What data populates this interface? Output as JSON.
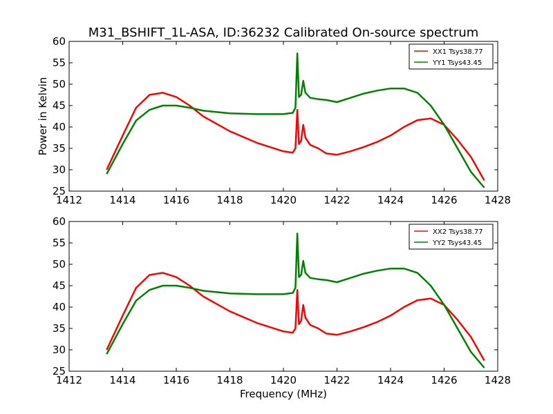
{
  "title": "M31_BSHIFT_1L-ASA, ID:36232 Calibrated On-source spectrum",
  "chart_data": [
    {
      "type": "line",
      "title": "M31_BSHIFT_1L-ASA, ID:36232 Calibrated On-source spectrum",
      "xlabel": "",
      "ylabel": "Power in Kelvin",
      "xlim": [
        1412,
        1428
      ],
      "ylim": [
        25,
        60
      ],
      "xticks": [
        1412,
        1414,
        1416,
        1418,
        1420,
        1422,
        1424,
        1426,
        1428
      ],
      "yticks": [
        25,
        30,
        35,
        40,
        45,
        50,
        55,
        60
      ],
      "grid": false,
      "legend_position": "top-right",
      "series": [
        {
          "name": "XX1 Tsys38.77",
          "color": "#ff0000",
          "x": [
            1413.4,
            1414.0,
            1414.5,
            1415.0,
            1415.5,
            1416.0,
            1416.5,
            1417.0,
            1418.0,
            1419.0,
            1420.0,
            1420.35,
            1420.45,
            1420.52,
            1420.58,
            1420.66,
            1420.74,
            1420.82,
            1421.0,
            1421.3,
            1421.6,
            1422.0,
            1422.5,
            1423.0,
            1423.5,
            1424.0,
            1424.5,
            1425.0,
            1425.5,
            1426.0,
            1426.5,
            1427.0,
            1427.5
          ],
          "y": [
            30.0,
            38.0,
            44.5,
            47.5,
            48.0,
            47.0,
            45.0,
            42.5,
            39.0,
            36.3,
            34.3,
            34.0,
            35.0,
            44.0,
            36.0,
            36.8,
            40.5,
            37.5,
            35.8,
            35.0,
            33.8,
            33.5,
            34.3,
            35.3,
            36.5,
            38.0,
            40.0,
            41.6,
            42.0,
            40.5,
            37.0,
            33.0,
            27.5
          ]
        },
        {
          "name": "YY1 Tsys43.45",
          "color": "#008000",
          "x": [
            1413.4,
            1414.0,
            1414.5,
            1415.0,
            1415.5,
            1416.0,
            1416.5,
            1417.0,
            1418.0,
            1419.0,
            1420.0,
            1420.35,
            1420.45,
            1420.52,
            1420.58,
            1420.66,
            1420.74,
            1420.82,
            1421.0,
            1421.3,
            1421.6,
            1422.0,
            1422.5,
            1423.0,
            1423.5,
            1424.0,
            1424.5,
            1425.0,
            1425.5,
            1426.0,
            1426.5,
            1427.0,
            1427.5
          ],
          "y": [
            29.0,
            36.0,
            41.5,
            44.0,
            45.0,
            45.0,
            44.5,
            43.8,
            43.2,
            43.0,
            43.0,
            43.3,
            44.5,
            57.2,
            47.0,
            47.5,
            50.8,
            48.0,
            46.8,
            46.5,
            46.3,
            45.8,
            46.8,
            47.8,
            48.5,
            49.0,
            49.0,
            48.0,
            45.0,
            40.5,
            35.0,
            29.5,
            25.8
          ]
        }
      ]
    },
    {
      "type": "line",
      "title": "",
      "xlabel": "Frequency (MHz)",
      "ylabel": "",
      "xlim": [
        1412,
        1428
      ],
      "ylim": [
        25,
        60
      ],
      "xticks": [
        1412,
        1414,
        1416,
        1418,
        1420,
        1422,
        1424,
        1426,
        1428
      ],
      "yticks": [
        25,
        30,
        35,
        40,
        45,
        50,
        55,
        60
      ],
      "grid": false,
      "legend_position": "top-right",
      "series": [
        {
          "name": "XX2 Tsys38.77",
          "color": "#ff0000",
          "x": [
            1413.4,
            1414.0,
            1414.5,
            1415.0,
            1415.5,
            1416.0,
            1416.5,
            1417.0,
            1418.0,
            1419.0,
            1420.0,
            1420.35,
            1420.45,
            1420.52,
            1420.58,
            1420.66,
            1420.74,
            1420.82,
            1421.0,
            1421.3,
            1421.6,
            1422.0,
            1422.5,
            1423.0,
            1423.5,
            1424.0,
            1424.5,
            1425.0,
            1425.5,
            1426.0,
            1426.5,
            1427.0,
            1427.5
          ],
          "y": [
            30.0,
            38.0,
            44.5,
            47.5,
            48.0,
            47.0,
            45.0,
            42.5,
            39.0,
            36.3,
            34.3,
            34.0,
            35.0,
            44.0,
            36.0,
            36.8,
            40.5,
            37.5,
            35.8,
            35.0,
            33.8,
            33.5,
            34.3,
            35.3,
            36.5,
            38.0,
            40.0,
            41.6,
            42.0,
            40.5,
            37.0,
            33.0,
            27.5
          ]
        },
        {
          "name": "YY2 Tsys43.45",
          "color": "#008000",
          "x": [
            1413.4,
            1414.0,
            1414.5,
            1415.0,
            1415.5,
            1416.0,
            1416.5,
            1417.0,
            1418.0,
            1419.0,
            1420.0,
            1420.35,
            1420.45,
            1420.52,
            1420.58,
            1420.66,
            1420.74,
            1420.82,
            1421.0,
            1421.3,
            1421.6,
            1422.0,
            1422.5,
            1423.0,
            1423.5,
            1424.0,
            1424.5,
            1425.0,
            1425.5,
            1426.0,
            1426.5,
            1427.0,
            1427.5
          ],
          "y": [
            29.0,
            36.0,
            41.5,
            44.0,
            45.0,
            45.0,
            44.5,
            43.8,
            43.2,
            43.0,
            43.0,
            43.3,
            44.5,
            57.2,
            47.0,
            47.5,
            50.8,
            48.0,
            46.8,
            46.5,
            46.3,
            45.8,
            46.8,
            47.8,
            48.5,
            49.0,
            49.0,
            48.0,
            45.0,
            40.5,
            35.0,
            29.5,
            25.8
          ]
        }
      ]
    }
  ]
}
